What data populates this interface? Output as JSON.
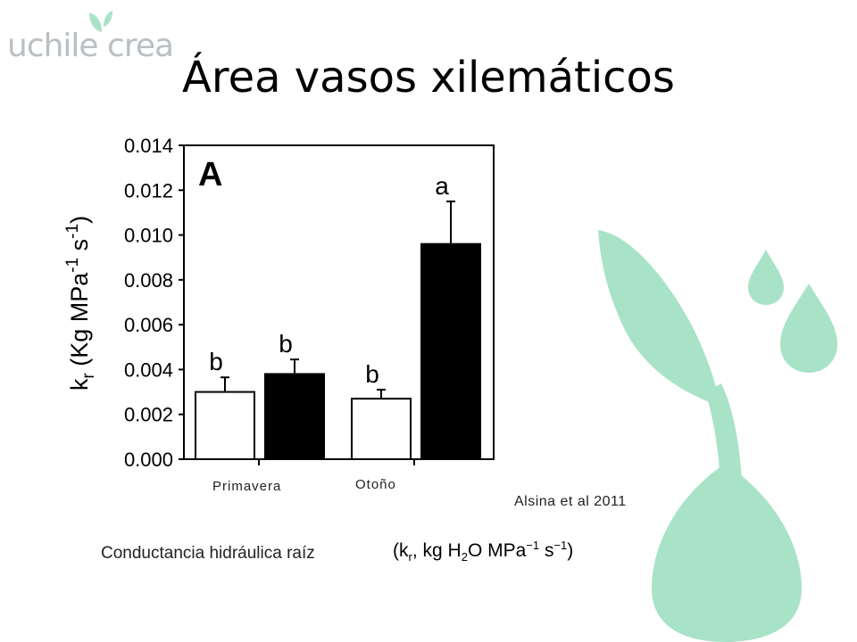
{
  "slide": {
    "title": "Área vasos xilemáticos",
    "logo_text": "uchile crea",
    "citation": "Alsina et al 2011",
    "caption": "Conductancia hidráulica raíz",
    "unit_expression": {
      "open": "(k",
      "sub": "r",
      "middle": ", kg H",
      "sub2": "2",
      "middle2": "O MPa",
      "sup": "−1",
      "middle3": " s",
      "sup2": "−1",
      "close": ")"
    }
  },
  "chart_data": {
    "type": "bar",
    "panel_label": "A",
    "ylabel": {
      "main": "k",
      "sub": "r",
      "rest": " (Kg MPa",
      "sup1": "-1",
      "mid": " s",
      "sup2": "-1",
      "close": ")"
    },
    "ylim": [
      0,
      0.014
    ],
    "yticks": [
      "0.000",
      "0.002",
      "0.004",
      "0.006",
      "0.008",
      "0.010",
      "0.012",
      "0.014"
    ],
    "categories": [
      "Primavera",
      "Otoño"
    ],
    "bars": [
      {
        "category": "Primavera",
        "fill": "#ffffff",
        "value": 0.003,
        "error": 0.00065,
        "letter": "b"
      },
      {
        "category": "Primavera",
        "fill": "#000000",
        "value": 0.0038,
        "error": 0.00065,
        "letter": "b"
      },
      {
        "category": "Otoño",
        "fill": "#ffffff",
        "value": 0.0027,
        "error": 0.0004,
        "letter": "b"
      },
      {
        "category": "Otoño",
        "fill": "#000000",
        "value": 0.0096,
        "error": 0.0019,
        "letter": "a"
      }
    ],
    "grid": false
  },
  "colors": {
    "deco_green": "#a9e3c7",
    "logo_grey": "#b9c0c5"
  }
}
